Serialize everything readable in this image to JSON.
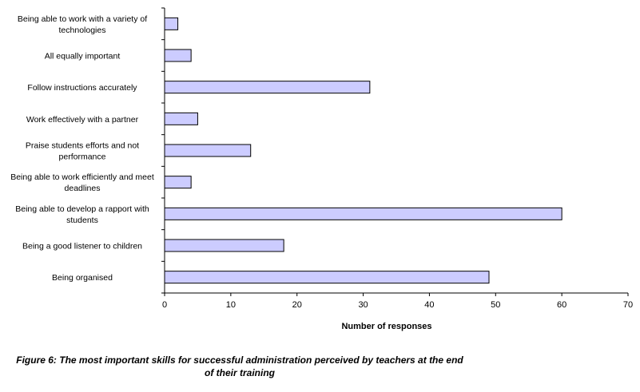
{
  "chart_data": {
    "type": "bar",
    "orientation": "horizontal",
    "categories": [
      [
        "Being able to work with a variety of",
        "technologies"
      ],
      [
        "All equally important"
      ],
      [
        "Follow instructions accurately"
      ],
      [
        "Work effectively with a partner"
      ],
      [
        "Praise students efforts and not",
        "performance"
      ],
      [
        "Being able to work efficiently and meet",
        "deadlines"
      ],
      [
        "Being able to develop a rapport with",
        "students"
      ],
      [
        "Being a good listener to children"
      ],
      [
        "Being organised"
      ]
    ],
    "values": [
      2,
      4,
      31,
      5,
      13,
      4,
      60,
      18,
      49
    ],
    "xlabel": "Number of responses",
    "xlim": [
      0,
      70
    ],
    "xticks": [
      "0",
      "10",
      "20",
      "30",
      "40",
      "50",
      "60",
      "70"
    ],
    "grid": false,
    "bar_color": "#ccccff",
    "bar_edge_color": "#000000"
  },
  "caption": {
    "line1": "Figure 6: The most important skills for successful administration perceived by teachers at the end",
    "line2": "of their training"
  }
}
